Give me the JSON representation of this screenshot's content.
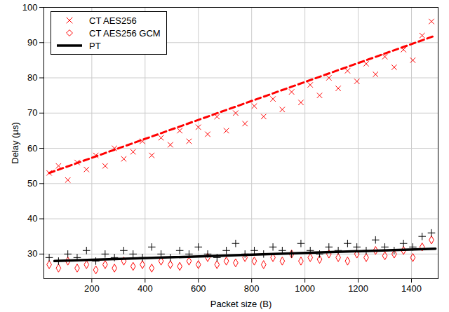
{
  "chart_data": {
    "type": "scatter",
    "x_label": "Packet size (B)",
    "y_label": "Delay (μs)",
    "xlim": [
      20,
      1500
    ],
    "ylim": [
      23,
      100
    ],
    "xticks": [
      200,
      400,
      600,
      800,
      1000,
      1200,
      1400
    ],
    "yticks": [
      30,
      40,
      50,
      60,
      70,
      80,
      90,
      100
    ],
    "grid": true,
    "legend": "top-left",
    "x": [
      40,
      75,
      110,
      145,
      180,
      215,
      250,
      285,
      320,
      355,
      390,
      425,
      460,
      495,
      530,
      565,
      600,
      635,
      670,
      705,
      740,
      775,
      810,
      845,
      880,
      915,
      950,
      985,
      1020,
      1055,
      1090,
      1125,
      1160,
      1195,
      1230,
      1265,
      1300,
      1335,
      1370,
      1405,
      1440,
      1475
    ],
    "series": [
      {
        "name": "CT AES256",
        "color": "#ff0000",
        "marker": "x",
        "line_style": "dashed",
        "values": [
          53,
          55,
          51,
          56,
          54,
          58,
          55,
          60,
          57,
          59,
          62,
          58,
          63,
          61,
          65,
          62,
          66,
          64,
          69,
          65,
          70,
          67,
          72,
          69,
          74,
          71,
          76,
          73,
          78,
          75,
          80,
          77,
          82,
          79,
          84,
          81,
          86,
          83,
          88,
          85,
          92,
          96
        ],
        "fit": {
          "x": [
            40,
            1490
          ],
          "values": [
            53,
            92
          ]
        }
      },
      {
        "name": "CT AES256 GCM",
        "color": "#ff0000",
        "marker": "diamond",
        "values": [
          27,
          26,
          28,
          26,
          27,
          25.5,
          27,
          26,
          28,
          26.5,
          27,
          26,
          28,
          27,
          26.5,
          28,
          27,
          29,
          27,
          28,
          27.5,
          29,
          28,
          27,
          29,
          28,
          30,
          28,
          29,
          28.5,
          30,
          29,
          28,
          30,
          29,
          31,
          29.5,
          30,
          31,
          29,
          32,
          34
        ]
      },
      {
        "name": "PT",
        "color": "#000000",
        "marker": "plus",
        "line_style": "solid",
        "values": [
          29,
          28,
          30,
          29,
          31,
          28,
          30,
          29,
          31,
          30,
          29,
          32,
          30,
          29,
          31,
          30,
          32,
          30,
          29,
          31,
          33,
          30,
          31,
          30,
          32,
          31,
          30,
          33,
          31,
          30,
          32,
          31,
          33,
          32,
          31,
          34,
          32,
          31,
          33,
          32,
          35,
          36
        ],
        "fit": {
          "x": [
            60,
            1490
          ],
          "values": [
            28,
            31.5
          ]
        }
      }
    ]
  }
}
